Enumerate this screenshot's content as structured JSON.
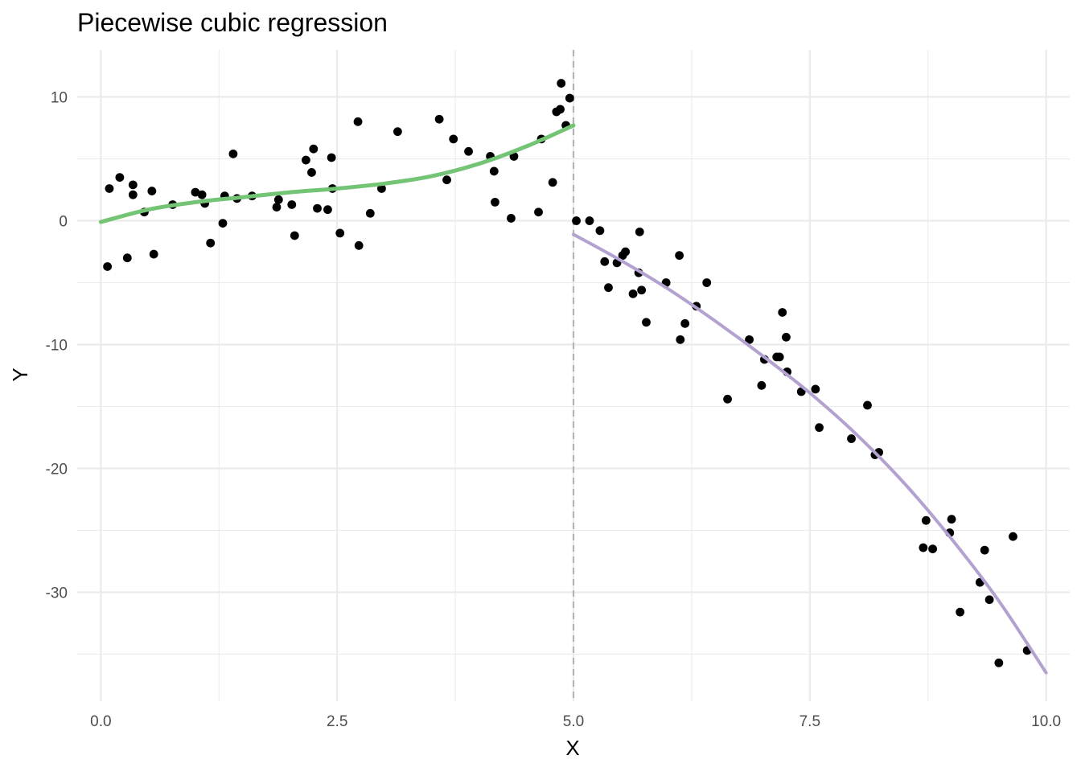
{
  "chart_data": {
    "type": "scatter",
    "title": "Piecewise cubic regression",
    "xlabel": "X",
    "ylabel": "Y",
    "xlim": [
      -0.25,
      10.25
    ],
    "ylim": [
      -38.8,
      13.8
    ],
    "grid": true,
    "x_ticks": [
      0,
      2.5,
      5,
      7.5,
      10
    ],
    "x_tick_labels": [
      "0.0",
      "2.5",
      "5.0",
      "7.5",
      "10.0"
    ],
    "y_ticks": [
      10,
      0,
      -10,
      -20,
      -30
    ],
    "y_tick_labels": [
      "10",
      "0",
      "-10",
      "-20",
      "-30"
    ],
    "breakpoint": 5,
    "colors": {
      "points": "#000000",
      "left_fit": "#74c476",
      "right_fit": "#b3a2d0",
      "breakpoint_line": "#b3b3b3"
    },
    "points": [
      [
        0.07,
        -3.7
      ],
      [
        0.09,
        2.6
      ],
      [
        0.2,
        3.5
      ],
      [
        0.28,
        -3.0
      ],
      [
        0.34,
        2.9
      ],
      [
        0.34,
        2.1
      ],
      [
        0.46,
        0.7
      ],
      [
        0.54,
        2.4
      ],
      [
        0.56,
        -2.7
      ],
      [
        0.76,
        1.3
      ],
      [
        1.0,
        2.3
      ],
      [
        1.07,
        2.1
      ],
      [
        1.1,
        1.4
      ],
      [
        1.16,
        -1.8
      ],
      [
        1.29,
        -0.2
      ],
      [
        1.31,
        2.0
      ],
      [
        1.4,
        5.4
      ],
      [
        1.44,
        1.8
      ],
      [
        1.6,
        2.0
      ],
      [
        1.86,
        1.1
      ],
      [
        1.88,
        1.7
      ],
      [
        2.02,
        1.3
      ],
      [
        2.05,
        -1.2
      ],
      [
        2.17,
        4.9
      ],
      [
        2.23,
        3.9
      ],
      [
        2.25,
        5.8
      ],
      [
        2.29,
        1.0
      ],
      [
        2.4,
        0.9
      ],
      [
        2.44,
        5.1
      ],
      [
        2.45,
        2.6
      ],
      [
        2.53,
        -1.0
      ],
      [
        2.72,
        8.0
      ],
      [
        2.73,
        -2.0
      ],
      [
        2.85,
        0.6
      ],
      [
        2.97,
        2.6
      ],
      [
        3.14,
        7.2
      ],
      [
        3.58,
        8.2
      ],
      [
        3.66,
        3.3
      ],
      [
        3.73,
        6.6
      ],
      [
        3.89,
        5.6
      ],
      [
        4.12,
        5.2
      ],
      [
        4.16,
        4.0
      ],
      [
        4.17,
        1.5
      ],
      [
        4.34,
        0.2
      ],
      [
        4.37,
        5.2
      ],
      [
        4.63,
        0.7
      ],
      [
        4.66,
        6.6
      ],
      [
        4.78,
        3.1
      ],
      [
        4.82,
        8.8
      ],
      [
        4.86,
        9.0
      ],
      [
        4.87,
        11.1
      ],
      [
        4.92,
        7.7
      ],
      [
        4.96,
        9.9
      ],
      [
        5.03,
        0.0
      ],
      [
        5.17,
        0.0
      ],
      [
        5.28,
        -0.8
      ],
      [
        5.33,
        -3.3
      ],
      [
        5.37,
        -5.4
      ],
      [
        5.46,
        -3.4
      ],
      [
        5.52,
        -2.8
      ],
      [
        5.55,
        -2.5
      ],
      [
        5.63,
        -5.9
      ],
      [
        5.69,
        -4.2
      ],
      [
        5.7,
        -0.9
      ],
      [
        5.72,
        -5.6
      ],
      [
        5.77,
        -8.2
      ],
      [
        5.98,
        -5.0
      ],
      [
        6.12,
        -2.8
      ],
      [
        6.13,
        -9.6
      ],
      [
        6.18,
        -8.3
      ],
      [
        6.3,
        -6.9
      ],
      [
        6.41,
        -5.0
      ],
      [
        6.63,
        -14.4
      ],
      [
        6.86,
        -9.6
      ],
      [
        6.99,
        -13.3
      ],
      [
        7.02,
        -11.2
      ],
      [
        7.15,
        -11.0
      ],
      [
        7.18,
        -11.0
      ],
      [
        7.21,
        -7.4
      ],
      [
        7.25,
        -9.4
      ],
      [
        7.26,
        -12.2
      ],
      [
        7.41,
        -13.8
      ],
      [
        7.56,
        -13.6
      ],
      [
        7.6,
        -16.7
      ],
      [
        7.94,
        -17.6
      ],
      [
        8.11,
        -14.9
      ],
      [
        8.19,
        -18.9
      ],
      [
        8.23,
        -18.7
      ],
      [
        8.7,
        -26.4
      ],
      [
        8.73,
        -24.2
      ],
      [
        8.8,
        -26.5
      ],
      [
        8.98,
        -25.2
      ],
      [
        9.0,
        -24.1
      ],
      [
        9.09,
        -31.6
      ],
      [
        9.3,
        -29.2
      ],
      [
        9.35,
        -26.6
      ],
      [
        9.4,
        -30.6
      ],
      [
        9.5,
        -35.7
      ],
      [
        9.65,
        -25.5
      ],
      [
        9.8,
        -34.7
      ]
    ],
    "series": [
      {
        "x": [
          0.0,
          0.5,
          1.0,
          1.5,
          2.0,
          2.5,
          3.0,
          3.5,
          4.0,
          4.5,
          5.0
        ],
        "y": [
          -0.1,
          0.9,
          1.5,
          1.9,
          2.3,
          2.6,
          3.0,
          3.6,
          4.6,
          6.0,
          7.7
        ]
      },
      {
        "x": [
          5.0,
          5.5,
          6.0,
          6.5,
          7.0,
          7.5,
          8.0,
          8.5,
          9.0,
          9.5,
          10.0
        ],
        "y": [
          -1.1,
          -3.2,
          -5.5,
          -8.1,
          -10.9,
          -13.9,
          -17.3,
          -21.2,
          -25.7,
          -30.7,
          -36.5
        ]
      }
    ]
  }
}
